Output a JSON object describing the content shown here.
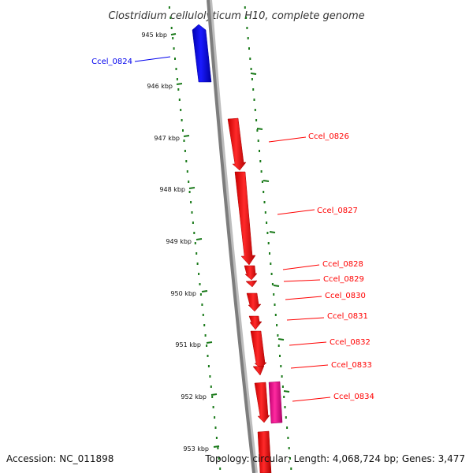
{
  "title": "Clostridium cellulolyticum H10, complete genome",
  "footer": {
    "accession": "Accession: NC_011898",
    "stats": "Topology: circular; Length: 4,068,724 bp; Genes: 3,477"
  },
  "colors": {
    "reverse_gene": "#0000ee",
    "forward_gene": "#ff0000",
    "highlight_gene": "#e8148c",
    "backbone": "#808080",
    "ticks": "#1a7a1a"
  },
  "ticks": [
    "945 kbp",
    "946 kbp",
    "947 kbp",
    "948 kbp",
    "949 kbp",
    "950 kbp",
    "951 kbp",
    "952 kbp",
    "953 kbp"
  ],
  "genes": [
    {
      "label": "Ccel_0824",
      "strand": "reverse",
      "color": "#0000ee"
    },
    {
      "label": "Ccel_0826",
      "strand": "forward",
      "color": "#ff0000"
    },
    {
      "label": "Ccel_0827",
      "strand": "forward",
      "color": "#ff0000"
    },
    {
      "label": "Ccel_0828",
      "strand": "forward",
      "color": "#ff0000"
    },
    {
      "label": "Ccel_0829",
      "strand": "forward",
      "color": "#ff0000"
    },
    {
      "label": "Ccel_0830",
      "strand": "forward",
      "color": "#ff0000"
    },
    {
      "label": "Ccel_0831",
      "strand": "forward",
      "color": "#ff0000"
    },
    {
      "label": "Ccel_0832",
      "strand": "forward",
      "color": "#ff0000"
    },
    {
      "label": "Ccel_0833",
      "strand": "forward",
      "color": "#ff0000"
    },
    {
      "label": "Ccel_0834",
      "strand": "forward",
      "color": "#ff0000"
    },
    {
      "label": "",
      "strand": "forward-outer",
      "color": "#e8148c"
    },
    {
      "label": "",
      "strand": "forward",
      "color": "#ff0000"
    }
  ]
}
